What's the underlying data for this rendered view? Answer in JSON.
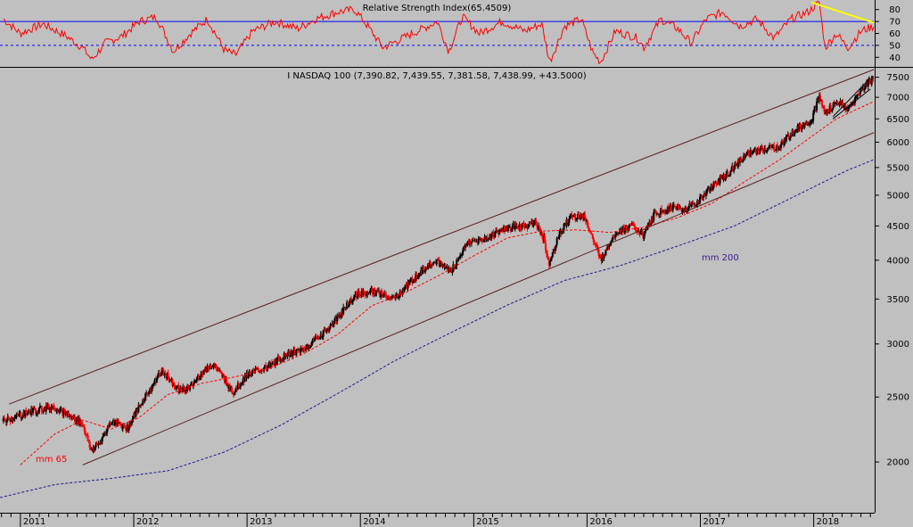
{
  "rsi_panel": {
    "title": "Relative Strength Index(65.4509)",
    "y_ticks": [
      40,
      50,
      60,
      70,
      80
    ],
    "ylim": [
      32,
      88
    ],
    "overbought": 70,
    "midline": 50,
    "colors": {
      "rsi": "#ff0000",
      "overbought_line": "#0000ff",
      "midline": "#0000ff",
      "divergence": "#ffff00"
    }
  },
  "price_panel": {
    "title": "I NASDAQ 100 (7,390.82, 7,439.55, 7,381.58, 7,438.99, +43.5000)",
    "mm65_label": "mm 65",
    "mm200_label": "mm 200",
    "y_ticks": [
      2000,
      2500,
      3000,
      3500,
      4000,
      4500,
      5000,
      5500,
      6000,
      6500,
      7000,
      7500
    ],
    "scale": "log",
    "colors": {
      "up": "#000000",
      "down": "#ff0000",
      "mm65": "#ff0000",
      "mm200": "#1a1a8c",
      "channel": "#5a2020"
    }
  },
  "x_axis": {
    "labels": [
      "2011",
      "2012",
      "2013",
      "2014",
      "2015",
      "2016",
      "2017",
      "2018"
    ],
    "start": 2010.82,
    "end": 2018.53
  },
  "chart_data": {
    "type": "line",
    "scale": "log",
    "series": [
      {
        "values": [
          [
            2010.85,
            2300
          ],
          [
            2011.1,
            2380
          ],
          [
            2011.3,
            2420
          ],
          [
            2011.45,
            2330
          ],
          [
            2011.55,
            2280
          ],
          [
            2011.62,
            2080
          ],
          [
            2011.7,
            2130
          ],
          [
            2011.8,
            2300
          ],
          [
            2011.95,
            2250
          ],
          [
            2012.1,
            2500
          ],
          [
            2012.25,
            2740
          ],
          [
            2012.4,
            2560
          ],
          [
            2012.5,
            2580
          ],
          [
            2012.6,
            2720
          ],
          [
            2012.7,
            2800
          ],
          [
            2012.88,
            2540
          ],
          [
            2013.0,
            2700
          ],
          [
            2013.2,
            2780
          ],
          [
            2013.35,
            2900
          ],
          [
            2013.5,
            2940
          ],
          [
            2013.6,
            3050
          ],
          [
            2013.75,
            3200
          ],
          [
            2013.95,
            3550
          ],
          [
            2014.1,
            3600
          ],
          [
            2014.2,
            3550
          ],
          [
            2014.3,
            3500
          ],
          [
            2014.5,
            3800
          ],
          [
            2014.65,
            4000
          ],
          [
            2014.8,
            3850
          ],
          [
            2014.95,
            4250
          ],
          [
            2015.1,
            4300
          ],
          [
            2015.25,
            4450
          ],
          [
            2015.45,
            4500
          ],
          [
            2015.55,
            4550
          ],
          [
            2015.62,
            4300
          ],
          [
            2015.66,
            3950
          ],
          [
            2015.75,
            4350
          ],
          [
            2015.85,
            4650
          ],
          [
            2015.98,
            4650
          ],
          [
            2016.05,
            4300
          ],
          [
            2016.12,
            4000
          ],
          [
            2016.25,
            4400
          ],
          [
            2016.4,
            4500
          ],
          [
            2016.5,
            4350
          ],
          [
            2016.6,
            4700
          ],
          [
            2016.75,
            4800
          ],
          [
            2016.85,
            4750
          ],
          [
            2016.98,
            4900
          ],
          [
            2017.1,
            5150
          ],
          [
            2017.25,
            5400
          ],
          [
            2017.4,
            5750
          ],
          [
            2017.55,
            5850
          ],
          [
            2017.7,
            5900
          ],
          [
            2017.85,
            6300
          ],
          [
            2017.98,
            6450
          ],
          [
            2018.05,
            7000
          ],
          [
            2018.1,
            6600
          ],
          [
            2018.2,
            6900
          ],
          [
            2018.3,
            6700
          ],
          [
            2018.4,
            7100
          ],
          [
            2018.48,
            7350
          ],
          [
            2018.53,
            7439
          ]
        ]
      },
      {
        "name": "mm 65",
        "values": [
          [
            2011.0,
            1980
          ],
          [
            2011.3,
            2200
          ],
          [
            2011.55,
            2310
          ],
          [
            2011.8,
            2240
          ],
          [
            2012.05,
            2330
          ],
          [
            2012.3,
            2520
          ],
          [
            2012.6,
            2620
          ],
          [
            2012.9,
            2680
          ],
          [
            2013.2,
            2760
          ],
          [
            2013.5,
            2900
          ],
          [
            2013.8,
            3100
          ],
          [
            2014.1,
            3420
          ],
          [
            2014.4,
            3580
          ],
          [
            2014.7,
            3800
          ],
          [
            2015.0,
            4060
          ],
          [
            2015.3,
            4320
          ],
          [
            2015.6,
            4420
          ],
          [
            2015.9,
            4440
          ],
          [
            2016.2,
            4400
          ],
          [
            2016.5,
            4480
          ],
          [
            2016.8,
            4630
          ],
          [
            2017.1,
            4860
          ],
          [
            2017.4,
            5250
          ],
          [
            2017.7,
            5650
          ],
          [
            2018.0,
            6150
          ],
          [
            2018.2,
            6500
          ],
          [
            2018.53,
            6900
          ]
        ]
      },
      {
        "name": "mm 200",
        "values": [
          [
            2010.82,
            1770
          ],
          [
            2011.3,
            1850
          ],
          [
            2011.8,
            1890
          ],
          [
            2012.3,
            1940
          ],
          [
            2012.8,
            2070
          ],
          [
            2013.3,
            2270
          ],
          [
            2013.8,
            2530
          ],
          [
            2014.3,
            2830
          ],
          [
            2014.8,
            3120
          ],
          [
            2015.3,
            3430
          ],
          [
            2015.8,
            3730
          ],
          [
            2016.3,
            3930
          ],
          [
            2016.8,
            4200
          ],
          [
            2017.3,
            4500
          ],
          [
            2017.8,
            4950
          ],
          [
            2018.3,
            5450
          ],
          [
            2018.53,
            5650
          ]
        ]
      }
    ],
    "channel_upper": [
      [
        2010.9,
        2440
      ],
      [
        2018.53,
        7700
      ]
    ],
    "channel_lower": [
      [
        2011.55,
        1980
      ],
      [
        2018.53,
        6200
      ]
    ],
    "wedge": [
      [
        [
          2018.17,
          6550
        ],
        [
          2018.5,
          7480
        ]
      ],
      [
        [
          2018.17,
          6500
        ],
        [
          2018.5,
          7200
        ]
      ]
    ],
    "rsi": {
      "values": [
        [
          2010.85,
          72
        ],
        [
          2011.0,
          60
        ],
        [
          2011.2,
          68
        ],
        [
          2011.4,
          58
        ],
        [
          2011.55,
          48
        ],
        [
          2011.63,
          38
        ],
        [
          2011.75,
          52
        ],
        [
          2011.9,
          58
        ],
        [
          2012.05,
          70
        ],
        [
          2012.2,
          74
        ],
        [
          2012.35,
          45
        ],
        [
          2012.5,
          60
        ],
        [
          2012.65,
          72
        ],
        [
          2012.8,
          46
        ],
        [
          2012.9,
          42
        ],
        [
          2013.05,
          62
        ],
        [
          2013.25,
          70
        ],
        [
          2013.45,
          64
        ],
        [
          2013.6,
          72
        ],
        [
          2013.8,
          78
        ],
        [
          2013.95,
          80
        ],
        [
          2014.05,
          68
        ],
        [
          2014.2,
          48
        ],
        [
          2014.35,
          55
        ],
        [
          2014.55,
          64
        ],
        [
          2014.68,
          70
        ],
        [
          2014.78,
          45
        ],
        [
          2014.9,
          74
        ],
        [
          2015.05,
          60
        ],
        [
          2015.25,
          70
        ],
        [
          2015.45,
          62
        ],
        [
          2015.6,
          68
        ],
        [
          2015.67,
          36
        ],
        [
          2015.8,
          66
        ],
        [
          2015.95,
          72
        ],
        [
          2016.05,
          44
        ],
        [
          2016.12,
          36
        ],
        [
          2016.25,
          62
        ],
        [
          2016.45,
          56
        ],
        [
          2016.5,
          48
        ],
        [
          2016.65,
          72
        ],
        [
          2016.8,
          64
        ],
        [
          2016.92,
          52
        ],
        [
          2017.05,
          72
        ],
        [
          2017.2,
          78
        ],
        [
          2017.35,
          66
        ],
        [
          2017.5,
          72
        ],
        [
          2017.65,
          56
        ],
        [
          2017.8,
          72
        ],
        [
          2017.95,
          78
        ],
        [
          2018.05,
          86
        ],
        [
          2018.1,
          48
        ],
        [
          2018.2,
          60
        ],
        [
          2018.3,
          48
        ],
        [
          2018.42,
          62
        ],
        [
          2018.53,
          66
        ]
      ],
      "divergence_line": [
        [
          2017.98,
          86
        ],
        [
          2018.53,
          69
        ]
      ]
    }
  }
}
